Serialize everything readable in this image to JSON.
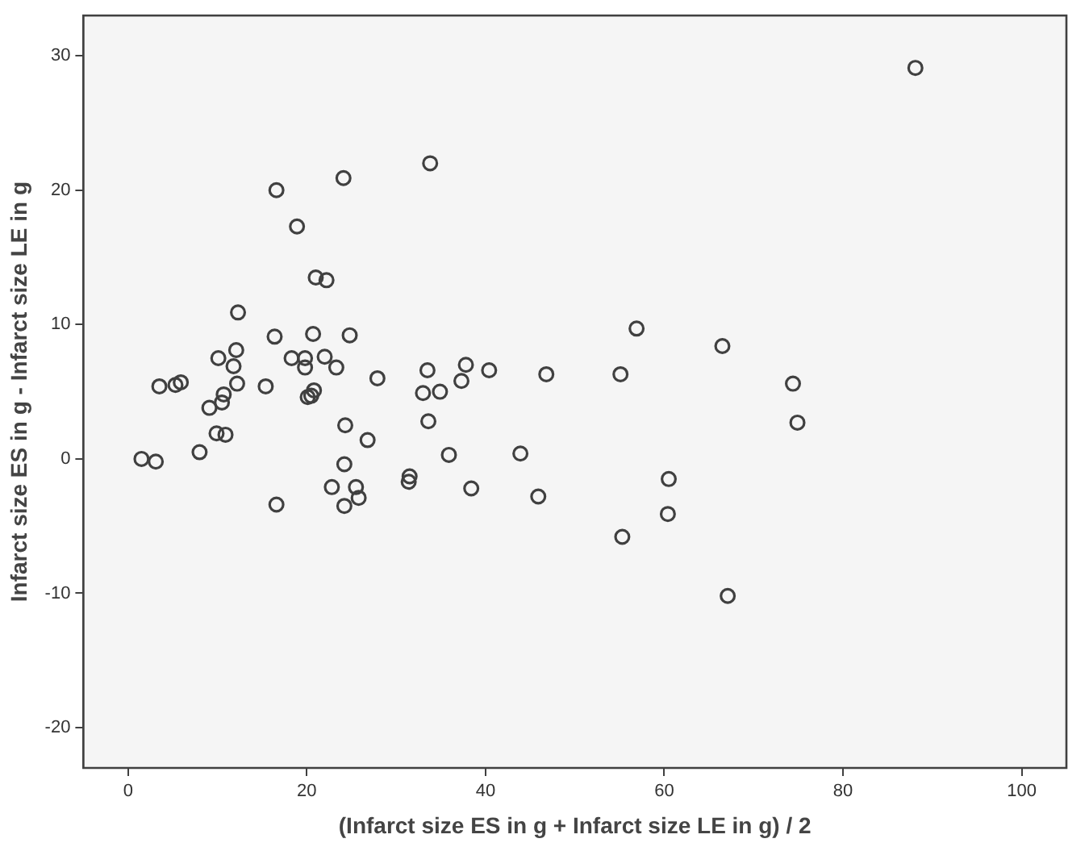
{
  "chart_data": {
    "type": "scatter",
    "xlabel": "(Infarct size ES in g + Infarct size LE in g) / 2",
    "ylabel": "Infarct size ES in g - Infarct size LE in g",
    "xlim": [
      -5,
      105
    ],
    "ylim": [
      -23,
      33
    ],
    "xticks": [
      0,
      20,
      40,
      60,
      80,
      100
    ],
    "yticks": [
      -20,
      -10,
      0,
      10,
      20,
      30
    ],
    "legend": false,
    "marker": "circle",
    "series": [
      {
        "color": "#404040",
        "x": [
          24.1,
          16.6,
          18.9,
          21.0,
          22.2,
          12.3,
          16.4,
          20.7,
          24.8,
          12.1,
          10.1,
          11.8,
          18.3,
          19.8,
          22.0,
          19.8,
          23.3,
          27.9,
          12.2,
          15.4,
          3.5,
          5.3,
          5.9,
          10.7,
          10.5,
          9.1,
          9.9,
          10.9,
          8.0,
          1.5,
          3.1,
          16.6,
          20.8,
          20.1,
          20.5,
          24.3,
          26.8,
          24.2,
          22.8,
          25.5,
          25.8,
          24.2,
          31.5,
          31.4,
          33.8,
          56.9,
          33.5,
          37.8,
          40.4,
          46.8,
          55.1,
          37.3,
          33.0,
          34.9,
          33.6,
          35.9,
          43.9,
          38.4,
          45.9,
          60.5,
          60.4,
          55.3,
          88.1,
          66.5,
          74.4,
          74.9,
          67.1
        ],
        "values": [
          20.9,
          20.0,
          17.3,
          13.5,
          13.3,
          10.9,
          9.1,
          9.3,
          9.2,
          8.1,
          7.5,
          6.9,
          7.5,
          7.5,
          7.6,
          6.8,
          6.8,
          6.0,
          5.6,
          5.4,
          5.4,
          5.5,
          5.7,
          4.8,
          4.2,
          3.8,
          1.9,
          1.8,
          0.5,
          0.0,
          -0.2,
          -3.4,
          5.1,
          4.6,
          4.7,
          2.5,
          1.4,
          -0.4,
          -2.1,
          -2.1,
          -2.9,
          -3.5,
          -1.3,
          -1.7,
          22.0,
          9.7,
          6.6,
          7.0,
          6.6,
          6.3,
          6.3,
          5.8,
          4.9,
          5.0,
          2.8,
          0.3,
          0.4,
          -2.2,
          -2.8,
          -1.5,
          -4.1,
          -5.8,
          29.1,
          8.4,
          5.6,
          2.7,
          -10.2
        ]
      }
    ]
  }
}
